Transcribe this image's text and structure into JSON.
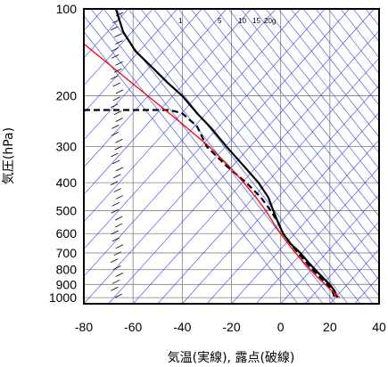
{
  "chart_data": {
    "type": "line",
    "xlabel": "気温(実線), 露点(破線)",
    "ylabel": "気圧(hPa)",
    "x_ticks": [
      -80,
      -60,
      -40,
      -20,
      0,
      20,
      40
    ],
    "y_ticks": [
      100,
      200,
      300,
      400,
      500,
      600,
      700,
      800,
      900,
      1000
    ],
    "xlim": [
      -80,
      40
    ],
    "ylim": [
      1050,
      100
    ],
    "y_scale": "log",
    "mixing_ratio_labels": [
      "1",
      "5",
      "10",
      "15",
      "20g"
    ],
    "series": [
      {
        "kind": "temperature",
        "style": "solid",
        "color": "#000000",
        "points": [
          [
            -67,
            100
          ],
          [
            -64,
            120
          ],
          [
            -59,
            140
          ],
          [
            -52,
            160
          ],
          [
            -46,
            180
          ],
          [
            -40,
            200
          ],
          [
            -34,
            230
          ],
          [
            -28,
            260
          ],
          [
            -22,
            300
          ],
          [
            -15,
            350
          ],
          [
            -9,
            400
          ],
          [
            -5,
            450
          ],
          [
            -3,
            500
          ],
          [
            -1,
            550
          ],
          [
            1,
            600
          ],
          [
            4,
            650
          ],
          [
            8,
            700
          ],
          [
            11,
            750
          ],
          [
            14,
            800
          ],
          [
            17,
            850
          ],
          [
            20,
            900
          ],
          [
            22,
            950
          ],
          [
            23,
            1000
          ]
        ]
      },
      {
        "kind": "dewpoint",
        "style": "dashed",
        "color": "#000000",
        "points": [
          [
            -80,
            224
          ],
          [
            -45,
            224
          ],
          [
            -40,
            230
          ],
          [
            -34,
            255
          ],
          [
            -30,
            300
          ],
          [
            -22,
            350
          ],
          [
            -14,
            400
          ],
          [
            -8,
            450
          ],
          [
            -4,
            500
          ],
          [
            -1,
            550
          ],
          [
            1,
            600
          ],
          [
            4,
            650
          ],
          [
            7,
            700
          ],
          [
            10,
            750
          ],
          [
            13,
            800
          ],
          [
            16,
            850
          ],
          [
            19,
            900
          ],
          [
            21,
            950
          ],
          [
            22,
            1000
          ]
        ]
      },
      {
        "kind": "parcel",
        "style": "solid",
        "color": "#ff0000",
        "points": [
          [
            24,
            1000
          ],
          [
            21,
            950
          ],
          [
            18,
            900
          ],
          [
            15,
            850
          ],
          [
            12,
            800
          ],
          [
            9,
            750
          ],
          [
            6,
            700
          ],
          [
            3,
            650
          ],
          [
            0,
            600
          ],
          [
            -3,
            550
          ],
          [
            -6,
            500
          ],
          [
            -10,
            450
          ],
          [
            -15,
            400
          ],
          [
            -21,
            350
          ],
          [
            -29,
            300
          ],
          [
            -40,
            250
          ],
          [
            -54,
            200
          ],
          [
            -68,
            160
          ],
          [
            -80,
            132
          ]
        ]
      }
    ],
    "wind_barbs_near_x": -68,
    "colors": {
      "reference_lines": "#3344ee",
      "grid": "#808080",
      "frame": "#000000"
    }
  }
}
